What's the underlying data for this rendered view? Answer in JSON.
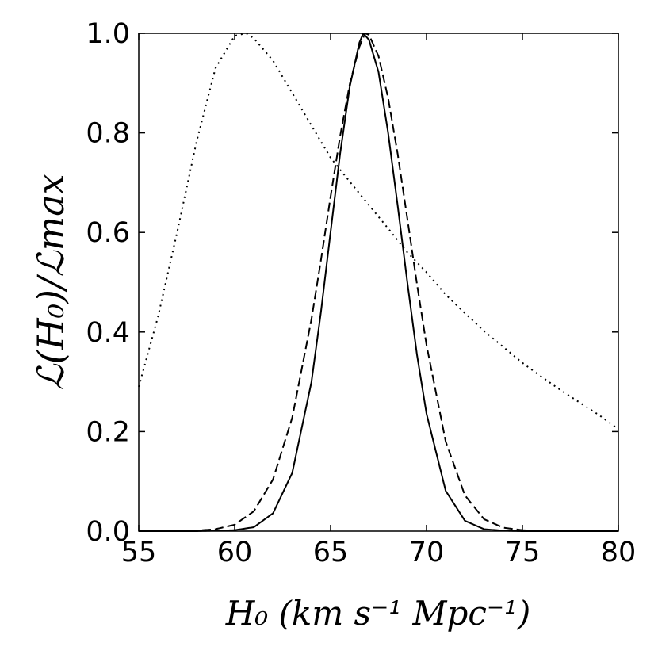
{
  "chart_data": {
    "type": "line",
    "title": "",
    "xlabel": "H₀ (km s⁻¹ Mpc⁻¹)",
    "ylabel": "ℒ(H₀)/ℒmax",
    "xlim": [
      55,
      80
    ],
    "ylim": [
      0,
      1
    ],
    "xticks": [
      "55",
      "60",
      "65",
      "70",
      "75",
      "80"
    ],
    "yticks": [
      "0.0",
      "0.2",
      "0.4",
      "0.6",
      "0.8",
      "1.0"
    ],
    "grid": false,
    "legend": "none",
    "series": [
      {
        "style": "solid",
        "color": "#000000",
        "x": [
          55,
          58,
          60,
          61,
          62,
          63,
          64,
          64.5,
          65,
          65.5,
          66,
          66.5,
          66.7,
          67,
          67.5,
          68,
          68.5,
          69,
          69.5,
          70,
          71,
          72,
          73,
          74,
          75,
          76,
          80
        ],
        "y": [
          0.0,
          0.0,
          0.002,
          0.008,
          0.036,
          0.117,
          0.299,
          0.441,
          0.601,
          0.759,
          0.893,
          0.981,
          1.0,
          0.987,
          0.922,
          0.8,
          0.653,
          0.5,
          0.355,
          0.236,
          0.081,
          0.021,
          0.004,
          0.001,
          0.0,
          0.0,
          0.0
        ]
      },
      {
        "style": "dashed",
        "color": "#000000",
        "x": [
          55,
          58,
          59,
          60,
          61,
          62,
          63,
          64,
          64.5,
          65,
          65.5,
          66,
          66.5,
          66.8,
          67,
          67.5,
          68,
          68.5,
          69,
          69.5,
          70,
          71,
          72,
          73,
          74,
          75,
          76,
          78,
          80
        ],
        "y": [
          0.0,
          0.001,
          0.004,
          0.013,
          0.04,
          0.104,
          0.228,
          0.425,
          0.545,
          0.672,
          0.794,
          0.898,
          0.973,
          1.0,
          0.997,
          0.954,
          0.87,
          0.757,
          0.628,
          0.497,
          0.374,
          0.18,
          0.072,
          0.024,
          0.007,
          0.002,
          0.0,
          0.0,
          0.0
        ]
      },
      {
        "style": "dotted",
        "color": "#000000",
        "x": [
          55,
          56,
          57,
          58,
          59,
          60,
          60.6,
          61,
          62,
          63,
          64,
          65,
          66,
          67,
          68,
          69,
          70,
          71,
          72,
          73,
          74,
          75,
          76,
          77,
          78,
          79,
          80
        ],
        "y": [
          0.29,
          0.43,
          0.6,
          0.78,
          0.93,
          0.995,
          1.0,
          0.99,
          0.945,
          0.88,
          0.815,
          0.75,
          0.702,
          0.655,
          0.608,
          0.56,
          0.52,
          0.475,
          0.438,
          0.402,
          0.37,
          0.338,
          0.31,
          0.283,
          0.258,
          0.233,
          0.205
        ]
      }
    ]
  }
}
